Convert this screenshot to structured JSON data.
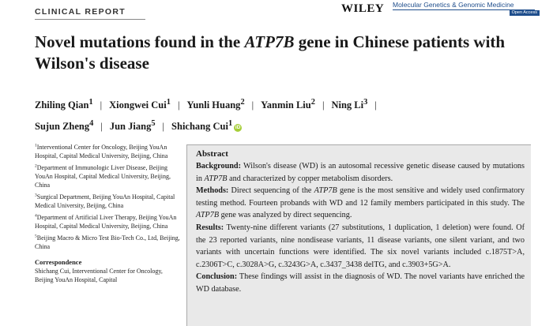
{
  "header": {
    "report_label": "CLINICAL REPORT",
    "publisher": "WILEY",
    "journal": "Molecular Genetics & Genomic Medicine",
    "open_access": "Open Access"
  },
  "article": {
    "title_part1": "Novel mutations found in the ",
    "title_gene": "ATP7B",
    "title_part2": " gene in Chinese patients with Wilson's disease"
  },
  "authors": [
    {
      "name": "Zhiling Qian",
      "aff": "1"
    },
    {
      "name": "Xiongwei Cui",
      "aff": "1"
    },
    {
      "name": "Yunli Huang",
      "aff": "2"
    },
    {
      "name": "Yanmin Liu",
      "aff": "2"
    },
    {
      "name": "Ning Li",
      "aff": "3"
    },
    {
      "name": "Sujun Zheng",
      "aff": "4"
    },
    {
      "name": "Jun Jiang",
      "aff": "5"
    },
    {
      "name": "Shichang Cui",
      "aff": "1"
    }
  ],
  "author_separator": "|",
  "orcid_label": "iD",
  "affiliations": [
    {
      "num": "1",
      "text": "Interventional Center for Oncology, Beijing YouAn Hospital, Capital Medical University, Beijing, China"
    },
    {
      "num": "2",
      "text": "Department of Immunologic Liver Disease, Beijing YouAn Hospital, Capital Medical University, Beijing, China"
    },
    {
      "num": "3",
      "text": "Surgical Department, Beijing YouAn Hospital, Capital Medical University, Beijing, China"
    },
    {
      "num": "4",
      "text": "Department of Artificial Liver Therapy, Beijing YouAn Hospital, Capital Medical University, Beijing, China"
    },
    {
      "num": "5",
      "text": "Beijing Macro & Micro Test Bio-Tech Co., Ltd, Beijing, China"
    }
  ],
  "correspondence": {
    "heading": "Correspondence",
    "text": "Shichang Cui, Interventional Center for Oncology, Beijing YouAn Hospital, Capital"
  },
  "abstract": {
    "heading": "Abstract",
    "background_label": "Background:",
    "background_text1": " Wilson's disease (WD) is an autosomal recessive genetic disease caused by mutations in ",
    "background_gene": "ATP7B",
    "background_text2": " and characterized by copper metabolism disorders.",
    "methods_label": "Methods:",
    "methods_text1": " Direct sequencing of the ",
    "methods_gene1": "ATP7B",
    "methods_text2": " gene is the most sensitive and widely used confirmatory testing method. Fourteen probands with WD and 12 family members participated in this study. The ",
    "methods_gene2": "ATP7B",
    "methods_text3": " gene was analyzed by direct sequencing.",
    "results_label": "Results:",
    "results_text": " Twenty-nine different variants (27 substitutions, 1 duplication, 1 deletion) were found. Of the 23 reported variants, nine nondisease variants, 11 disease variants, one silent variant, and two variants with uncertain functions were identified. The six novel variants included c.1875T>A, c.2306T>C, c.3028A>G, c.3243G>A, c.3437_3438 delTG, and c.3903+5G>A.",
    "conclusion_label": "Conclusion:",
    "conclusion_text": " These findings will assist in the diagnosis of WD. The novel variants have enriched the WD database."
  }
}
